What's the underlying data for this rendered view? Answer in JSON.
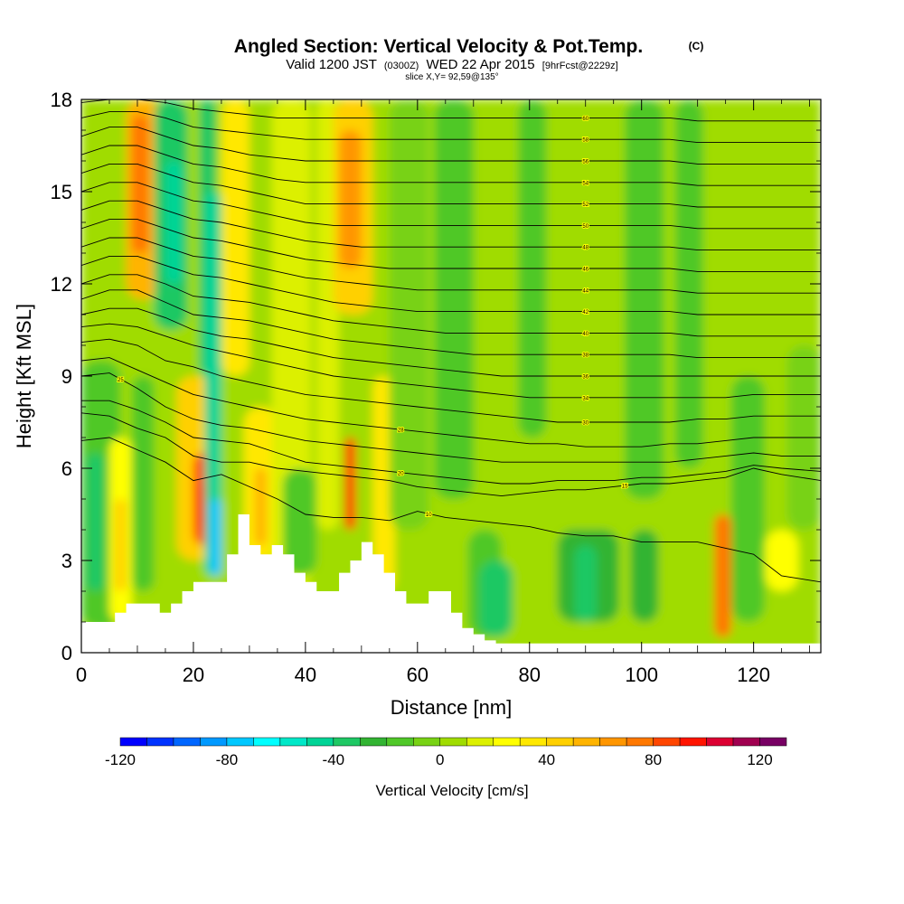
{
  "chart_data": {
    "type": "heatmap",
    "title": "Angled Section: Vertical Velocity & Pot.Temp.",
    "title_suffix": "(C)",
    "subtitle_prefix": "Valid 1200 JST",
    "subtitle_zulu": "(0300Z)",
    "subtitle_main": "WED 22 Apr 2015",
    "subtitle_fcst": "[9hrFcst@2229z]",
    "slice_info": "slice X,Y= 92,59@135°",
    "xlabel": "Distance [nm]",
    "ylabel": "Height [Kft MSL]",
    "xlim": [
      0,
      132
    ],
    "ylim": [
      0,
      18
    ],
    "x_ticks": [
      "0",
      "20",
      "40",
      "60",
      "80",
      "100",
      "120"
    ],
    "y_ticks": [
      "0",
      "3",
      "6",
      "9",
      "12",
      "15",
      "18"
    ],
    "x_tick_values": [
      0,
      20,
      40,
      60,
      80,
      100,
      120
    ],
    "y_tick_values": [
      0,
      3,
      6,
      9,
      12,
      15,
      18
    ],
    "colorbar": {
      "label": "Vertical Velocity [cm/s]",
      "range": [
        -120,
        130
      ],
      "step": 10,
      "tick_labels": [
        "-120",
        "-80",
        "-40",
        "0",
        "40",
        "80",
        "120"
      ],
      "tick_values": [
        -120,
        -80,
        -40,
        0,
        40,
        80,
        120
      ],
      "colors": [
        "#0000ff",
        "#0033ff",
        "#0066ff",
        "#0099ff",
        "#00c8ff",
        "#00ffff",
        "#00e8c8",
        "#00d496",
        "#1ec864",
        "#32b432",
        "#50c828",
        "#78d214",
        "#a0dc00",
        "#dcf000",
        "#ffff00",
        "#ffe800",
        "#ffd000",
        "#ffb400",
        "#ff9600",
        "#ff7800",
        "#ff4600",
        "#ff1400",
        "#dc0032",
        "#a00050",
        "#780064"
      ]
    },
    "velocity_cells": [
      {
        "x": [
          0,
          132
        ],
        "y": [
          0,
          18
        ],
        "w": 5
      },
      {
        "x": [
          0,
          7
        ],
        "y": [
          0.8,
          9.5
        ],
        "w": -15
      },
      {
        "x": [
          1,
          4
        ],
        "y": [
          2,
          6.5
        ],
        "w": -35
      },
      {
        "x": [
          5,
          9
        ],
        "y": [
          1,
          7
        ],
        "w": 25
      },
      {
        "x": [
          6,
          8
        ],
        "y": [
          2,
          5
        ],
        "w": 45
      },
      {
        "x": [
          9,
          13
        ],
        "y": [
          2,
          9
        ],
        "w": -20
      },
      {
        "x": [
          8,
          14
        ],
        "y": [
          11.5,
          18
        ],
        "w": 55
      },
      {
        "x": [
          9,
          12
        ],
        "y": [
          13,
          17.5
        ],
        "w": 75
      },
      {
        "x": [
          13,
          19
        ],
        "y": [
          10.5,
          18
        ],
        "w": -35
      },
      {
        "x": [
          15,
          18
        ],
        "y": [
          12,
          16
        ],
        "w": -45
      },
      {
        "x": [
          17,
          24
        ],
        "y": [
          3,
          9
        ],
        "w": 45
      },
      {
        "x": [
          20,
          24
        ],
        "y": [
          3.5,
          6.5
        ],
        "w": 85
      },
      {
        "x": [
          21,
          23
        ],
        "y": [
          4,
          5.5
        ],
        "w": 95
      },
      {
        "x": [
          21,
          24
        ],
        "y": [
          9,
          18
        ],
        "w": -35
      },
      {
        "x": [
          22,
          25
        ],
        "y": [
          2.5,
          15
        ],
        "w": -50
      },
      {
        "x": [
          23,
          25
        ],
        "y": [
          2.5,
          5
        ],
        "w": -75
      },
      {
        "x": [
          25,
          30
        ],
        "y": [
          9,
          18
        ],
        "w": 35
      },
      {
        "x": [
          29,
          35
        ],
        "y": [
          3,
          8
        ],
        "w": 35
      },
      {
        "x": [
          31,
          33
        ],
        "y": [
          3.5,
          6
        ],
        "w": 55
      },
      {
        "x": [
          34,
          41
        ],
        "y": [
          2,
          18
        ],
        "w": 12
      },
      {
        "x": [
          36,
          42
        ],
        "y": [
          2.5,
          6
        ],
        "w": -20
      },
      {
        "x": [
          42,
          46
        ],
        "y": [
          4,
          18
        ],
        "w": 12
      },
      {
        "x": [
          45,
          52
        ],
        "y": [
          11,
          18
        ],
        "w": 45
      },
      {
        "x": [
          46,
          50
        ],
        "y": [
          12.5,
          17
        ],
        "w": 65
      },
      {
        "x": [
          47,
          49
        ],
        "y": [
          4,
          7
        ],
        "w": 80
      },
      {
        "x": [
          52,
          56
        ],
        "y": [
          2,
          9
        ],
        "w": 35
      },
      {
        "x": [
          55,
          62
        ],
        "y": [
          4,
          18
        ],
        "w": -8
      },
      {
        "x": [
          63,
          70
        ],
        "y": [
          5,
          18
        ],
        "w": -12
      },
      {
        "x": [
          69,
          75
        ],
        "y": [
          0.5,
          4
        ],
        "w": -20
      },
      {
        "x": [
          71,
          77
        ],
        "y": [
          0.5,
          3
        ],
        "w": -40
      },
      {
        "x": [
          78,
          83
        ],
        "y": [
          7,
          18
        ],
        "w": -12
      },
      {
        "x": [
          85,
          96
        ],
        "y": [
          1,
          4
        ],
        "w": -22
      },
      {
        "x": [
          88,
          92
        ],
        "y": [
          1,
          3.5
        ],
        "w": -38
      },
      {
        "x": [
          97,
          104
        ],
        "y": [
          5,
          18
        ],
        "w": -15
      },
      {
        "x": [
          98,
          103
        ],
        "y": [
          1,
          4
        ],
        "w": -30
      },
      {
        "x": [
          106,
          111
        ],
        "y": [
          6,
          18
        ],
        "w": -12
      },
      {
        "x": [
          113,
          116
        ],
        "y": [
          0.5,
          4.5
        ],
        "w": 70
      },
      {
        "x": [
          116,
          122
        ],
        "y": [
          1,
          9
        ],
        "w": -15
      },
      {
        "x": [
          122,
          128
        ],
        "y": [
          2,
          4
        ],
        "w": 25
      },
      {
        "x": [
          126,
          132
        ],
        "y": [
          4,
          10
        ],
        "w": -10
      }
    ],
    "terrain": {
      "x": [
        0,
        2,
        4,
        6,
        8,
        10,
        12,
        14,
        16,
        18,
        20,
        22,
        24,
        26,
        28,
        30,
        32,
        34,
        36,
        38,
        40,
        42,
        44,
        46,
        48,
        50,
        52,
        54,
        56,
        58,
        60,
        62,
        64,
        66,
        68,
        70,
        72,
        74,
        76,
        78,
        80,
        132
      ],
      "y": [
        1.0,
        1.0,
        1.0,
        1.3,
        1.6,
        1.6,
        1.6,
        1.3,
        1.6,
        2.0,
        2.3,
        2.3,
        2.3,
        3.2,
        4.5,
        3.5,
        3.2,
        3.5,
        3.2,
        2.6,
        2.3,
        2.0,
        2.0,
        2.6,
        3.0,
        3.6,
        3.2,
        2.6,
        2.0,
        1.6,
        1.6,
        2.0,
        2.0,
        1.3,
        0.8,
        0.6,
        0.4,
        0.3,
        0.3,
        0.3,
        0.3,
        0.3
      ]
    },
    "isentropes": [
      {
        "label": "10",
        "label_x": 62,
        "y": [
          6.9,
          7.0,
          6.6,
          6.2,
          5.6,
          5.8,
          5.4,
          5.0,
          4.5,
          4.4,
          4.4,
          4.3,
          4.6,
          4.4,
          4.3,
          4.2,
          4.1,
          3.9,
          3.8,
          3.8,
          3.6,
          3.6,
          3.6,
          3.4,
          3.2,
          2.5,
          2.3
        ]
      },
      {
        "label": "15",
        "label_x": 97,
        "y": [
          7.8,
          7.7,
          7.3,
          7.0,
          6.4,
          6.2,
          6.2,
          6.0,
          5.9,
          5.8,
          5.7,
          5.6,
          5.4,
          5.3,
          5.2,
          5.1,
          5.2,
          5.3,
          5.3,
          5.4,
          5.5,
          5.5,
          5.6,
          5.7,
          6.0,
          5.8,
          5.6
        ]
      },
      {
        "label": "20",
        "label_x": 57,
        "y": [
          8.2,
          8.2,
          7.9,
          7.5,
          7.0,
          6.9,
          6.8,
          6.5,
          6.2,
          6.1,
          6.0,
          5.9,
          5.8,
          5.7,
          5.6,
          5.5,
          5.5,
          5.6,
          5.6,
          5.6,
          5.7,
          5.7,
          5.8,
          5.9,
          6.1,
          6.0,
          5.9
        ]
      },
      {
        "label": "25",
        "label_x": 7,
        "y": [
          9.0,
          9.1,
          8.6,
          8.0,
          7.6,
          7.4,
          7.3,
          7.1,
          6.9,
          6.8,
          6.7,
          6.6,
          6.5,
          6.4,
          6.3,
          6.2,
          6.2,
          6.2,
          6.2,
          6.2,
          6.2,
          6.2,
          6.3,
          6.4,
          6.5,
          6.4,
          6.4
        ]
      },
      {
        "label": "28",
        "label_x": 57,
        "y": [
          9.5,
          9.6,
          9.2,
          8.8,
          8.4,
          8.2,
          8.0,
          7.8,
          7.6,
          7.5,
          7.4,
          7.3,
          7.2,
          7.1,
          7.0,
          6.9,
          6.8,
          6.8,
          6.7,
          6.7,
          6.7,
          6.8,
          6.8,
          6.9,
          7.0,
          7.0,
          7.0
        ]
      },
      {
        "label": "30",
        "label_x": 90,
        "y": [
          10.1,
          10.2,
          10.0,
          9.5,
          9.3,
          9.0,
          8.8,
          8.6,
          8.4,
          8.3,
          8.2,
          8.1,
          8.0,
          7.9,
          7.8,
          7.7,
          7.6,
          7.5,
          7.5,
          7.5,
          7.5,
          7.5,
          7.6,
          7.6,
          7.7,
          7.7,
          7.7
        ]
      },
      {
        "label": "34",
        "label_x": 90,
        "y": [
          10.6,
          10.7,
          10.6,
          10.3,
          10.0,
          9.8,
          9.6,
          9.4,
          9.2,
          9.0,
          8.9,
          8.8,
          8.7,
          8.6,
          8.5,
          8.4,
          8.3,
          8.3,
          8.3,
          8.3,
          8.3,
          8.3,
          8.3,
          8.3,
          8.4,
          8.4,
          8.4
        ]
      },
      {
        "label": "36",
        "label_x": 90,
        "y": [
          11.0,
          11.2,
          11.2,
          10.9,
          10.5,
          10.3,
          10.2,
          10.0,
          9.8,
          9.6,
          9.5,
          9.4,
          9.3,
          9.2,
          9.1,
          9.0,
          9.0,
          9.0,
          9.0,
          9.0,
          9.0,
          9.0,
          9.0,
          9.0,
          9.0,
          9.0,
          9.0
        ]
      },
      {
        "label": "38",
        "label_x": 90,
        "y": [
          11.5,
          11.8,
          11.8,
          11.4,
          11.0,
          10.9,
          10.8,
          10.6,
          10.4,
          10.2,
          10.1,
          10.0,
          9.9,
          9.8,
          9.7,
          9.7,
          9.7,
          9.7,
          9.7,
          9.7,
          9.7,
          9.7,
          9.6,
          9.6,
          9.6,
          9.6,
          9.6
        ]
      },
      {
        "label": "40",
        "label_x": 90,
        "y": [
          12.0,
          12.3,
          12.3,
          12.0,
          11.6,
          11.5,
          11.4,
          11.2,
          11.0,
          10.8,
          10.7,
          10.6,
          10.5,
          10.4,
          10.4,
          10.4,
          10.4,
          10.4,
          10.4,
          10.4,
          10.4,
          10.4,
          10.3,
          10.3,
          10.3,
          10.3,
          10.3
        ]
      },
      {
        "label": "42",
        "label_x": 90,
        "y": [
          12.6,
          12.9,
          12.9,
          12.6,
          12.3,
          12.2,
          12.0,
          11.8,
          11.6,
          11.4,
          11.3,
          11.2,
          11.1,
          11.1,
          11.1,
          11.1,
          11.1,
          11.1,
          11.1,
          11.1,
          11.1,
          11.1,
          11.0,
          11.0,
          11.0,
          11.0,
          11.0
        ]
      },
      {
        "label": "44",
        "label_x": 90,
        "y": [
          13.2,
          13.5,
          13.5,
          13.2,
          12.9,
          12.8,
          12.6,
          12.4,
          12.2,
          12.1,
          12.0,
          11.9,
          11.8,
          11.8,
          11.8,
          11.8,
          11.8,
          11.8,
          11.8,
          11.8,
          11.8,
          11.8,
          11.7,
          11.7,
          11.7,
          11.7,
          11.7
        ]
      },
      {
        "label": "46",
        "label_x": 90,
        "y": [
          13.8,
          14.1,
          14.1,
          13.8,
          13.5,
          13.4,
          13.2,
          13.0,
          12.8,
          12.7,
          12.6,
          12.5,
          12.5,
          12.5,
          12.5,
          12.5,
          12.5,
          12.5,
          12.5,
          12.5,
          12.5,
          12.5,
          12.4,
          12.4,
          12.4,
          12.4,
          12.4
        ]
      },
      {
        "label": "48",
        "label_x": 90,
        "y": [
          14.4,
          14.7,
          14.7,
          14.4,
          14.1,
          14.0,
          13.8,
          13.6,
          13.4,
          13.3,
          13.2,
          13.2,
          13.2,
          13.2,
          13.2,
          13.2,
          13.2,
          13.2,
          13.2,
          13.2,
          13.2,
          13.2,
          13.1,
          13.1,
          13.1,
          13.1,
          13.1
        ]
      },
      {
        "label": "50",
        "label_x": 90,
        "y": [
          15.0,
          15.3,
          15.3,
          15.0,
          14.7,
          14.6,
          14.4,
          14.2,
          14.0,
          13.9,
          13.9,
          13.9,
          13.9,
          13.9,
          13.9,
          13.9,
          13.9,
          13.9,
          13.9,
          13.9,
          13.9,
          13.9,
          13.8,
          13.8,
          13.8,
          13.8,
          13.8
        ]
      },
      {
        "label": "52",
        "label_x": 90,
        "y": [
          15.6,
          15.9,
          15.9,
          15.6,
          15.3,
          15.2,
          15.0,
          14.8,
          14.6,
          14.6,
          14.6,
          14.6,
          14.6,
          14.6,
          14.6,
          14.6,
          14.6,
          14.6,
          14.6,
          14.6,
          14.6,
          14.6,
          14.5,
          14.5,
          14.5,
          14.5,
          14.5
        ]
      },
      {
        "label": "54",
        "label_x": 90,
        "y": [
          16.2,
          16.5,
          16.5,
          16.2,
          15.9,
          15.8,
          15.6,
          15.4,
          15.3,
          15.3,
          15.3,
          15.3,
          15.3,
          15.3,
          15.3,
          15.3,
          15.3,
          15.3,
          15.3,
          15.3,
          15.3,
          15.3,
          15.2,
          15.2,
          15.2,
          15.2,
          15.2
        ]
      },
      {
        "label": "56",
        "label_x": 90,
        "y": [
          16.8,
          17.1,
          17.1,
          16.8,
          16.5,
          16.4,
          16.2,
          16.1,
          16.0,
          16.0,
          16.0,
          16.0,
          16.0,
          16.0,
          16.0,
          16.0,
          16.0,
          16.0,
          16.0,
          16.0,
          16.0,
          16.0,
          15.9,
          15.9,
          15.9,
          15.9,
          15.9
        ]
      },
      {
        "label": "58",
        "label_x": 90,
        "y": [
          17.4,
          17.6,
          17.6,
          17.4,
          17.1,
          17.0,
          16.9,
          16.8,
          16.7,
          16.7,
          16.7,
          16.7,
          16.7,
          16.7,
          16.7,
          16.7,
          16.7,
          16.7,
          16.7,
          16.7,
          16.7,
          16.7,
          16.6,
          16.6,
          16.6,
          16.6,
          16.6
        ]
      },
      {
        "label": "60",
        "label_x": 90,
        "y": [
          17.9,
          18.0,
          18.0,
          17.9,
          17.7,
          17.6,
          17.5,
          17.4,
          17.4,
          17.4,
          17.4,
          17.4,
          17.4,
          17.4,
          17.4,
          17.4,
          17.4,
          17.4,
          17.4,
          17.4,
          17.4,
          17.4,
          17.3,
          17.3,
          17.3,
          17.3,
          17.3
        ]
      }
    ],
    "isentrope_x": [
      0,
      5,
      10,
      15,
      20,
      25,
      30,
      35,
      40,
      45,
      50,
      55,
      60,
      65,
      70,
      75,
      80,
      85,
      90,
      95,
      100,
      105,
      110,
      115,
      120,
      125,
      132
    ]
  }
}
